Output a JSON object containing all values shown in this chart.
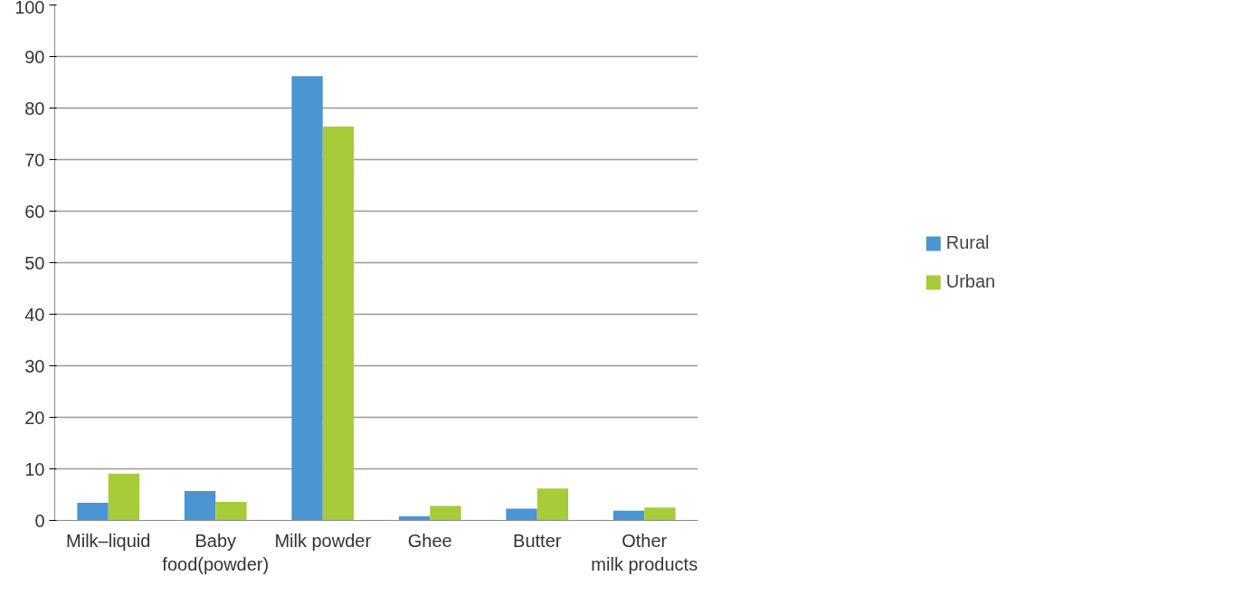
{
  "chart_data": {
    "type": "bar",
    "categories": [
      "Milk–liquid",
      "Baby food(powder)",
      "Milk powder",
      "Ghee",
      "Butter",
      "Other milk products"
    ],
    "series": [
      {
        "name": "Rural",
        "color": "#4a96d2",
        "values": [
          3.4,
          5.7,
          86.2,
          0.8,
          2.3,
          1.9
        ]
      },
      {
        "name": "Urban",
        "color": "#a6cc3a",
        "values": [
          9.1,
          3.6,
          76.4,
          2.8,
          6.2,
          2.5
        ]
      }
    ],
    "ylim": [
      0,
      100
    ],
    "yticks": [
      0,
      10,
      20,
      30,
      40,
      50,
      60,
      70,
      80,
      90,
      100
    ],
    "grid": "y",
    "legend": "right"
  }
}
